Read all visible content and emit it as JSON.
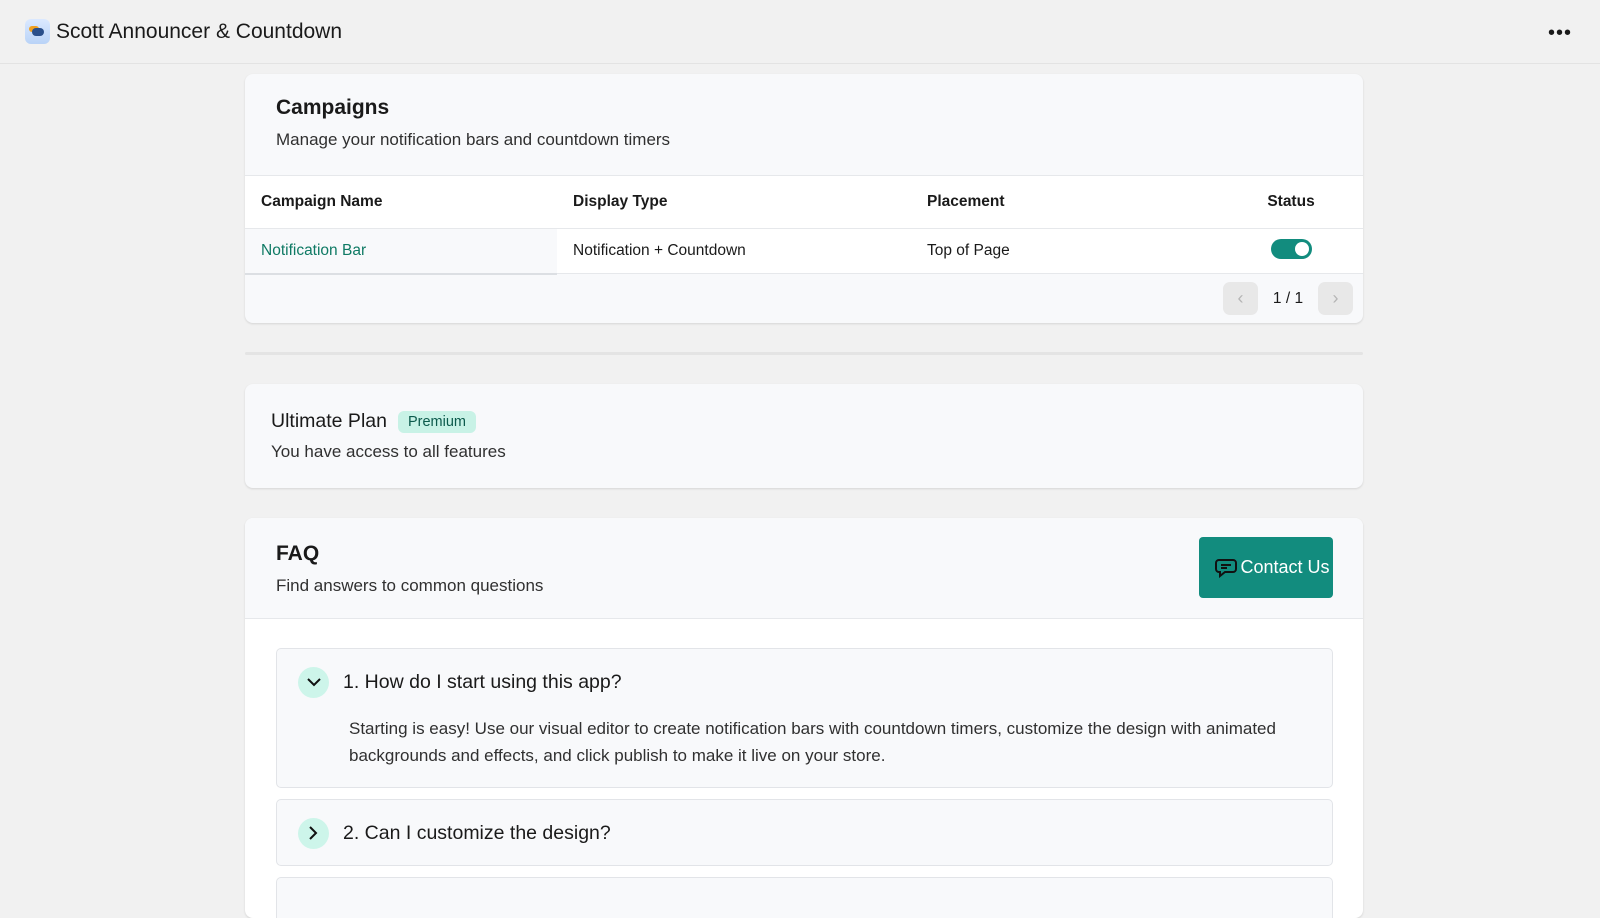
{
  "app": {
    "title": "Scott Announcer & Countdown",
    "icon": "app-logo-icon",
    "menu_icon": "more-horizontal-icon"
  },
  "campaigns": {
    "title": "Campaigns",
    "subtitle": "Manage your notification bars and countdown timers",
    "columns": [
      "Campaign Name",
      "Display Type",
      "Placement",
      "Status"
    ],
    "rows": [
      {
        "name": "Notification Bar",
        "display_type": "Notification + Countdown",
        "placement": "Top of Page",
        "status_on": true
      }
    ],
    "pagination": "1 / 1"
  },
  "plan": {
    "title": "Ultimate Plan",
    "badge": "Premium",
    "subtitle": "You have access to all features"
  },
  "faq": {
    "title": "FAQ",
    "subtitle": "Find answers to common questions",
    "contact_label": "Contact Us",
    "items": [
      {
        "question": "1. How do I start using this app?",
        "answer": "Starting is easy! Use our visual editor to create notification bars with countdown timers, customize the design with animated backgrounds and effects, and click publish to make it live on your store.",
        "expanded": true
      },
      {
        "question": "2. Can I customize the design?",
        "expanded": false
      }
    ]
  },
  "colors": {
    "accent": "#128c7e",
    "link": "#0f7a64",
    "badge_bg": "#c8f2e6"
  }
}
